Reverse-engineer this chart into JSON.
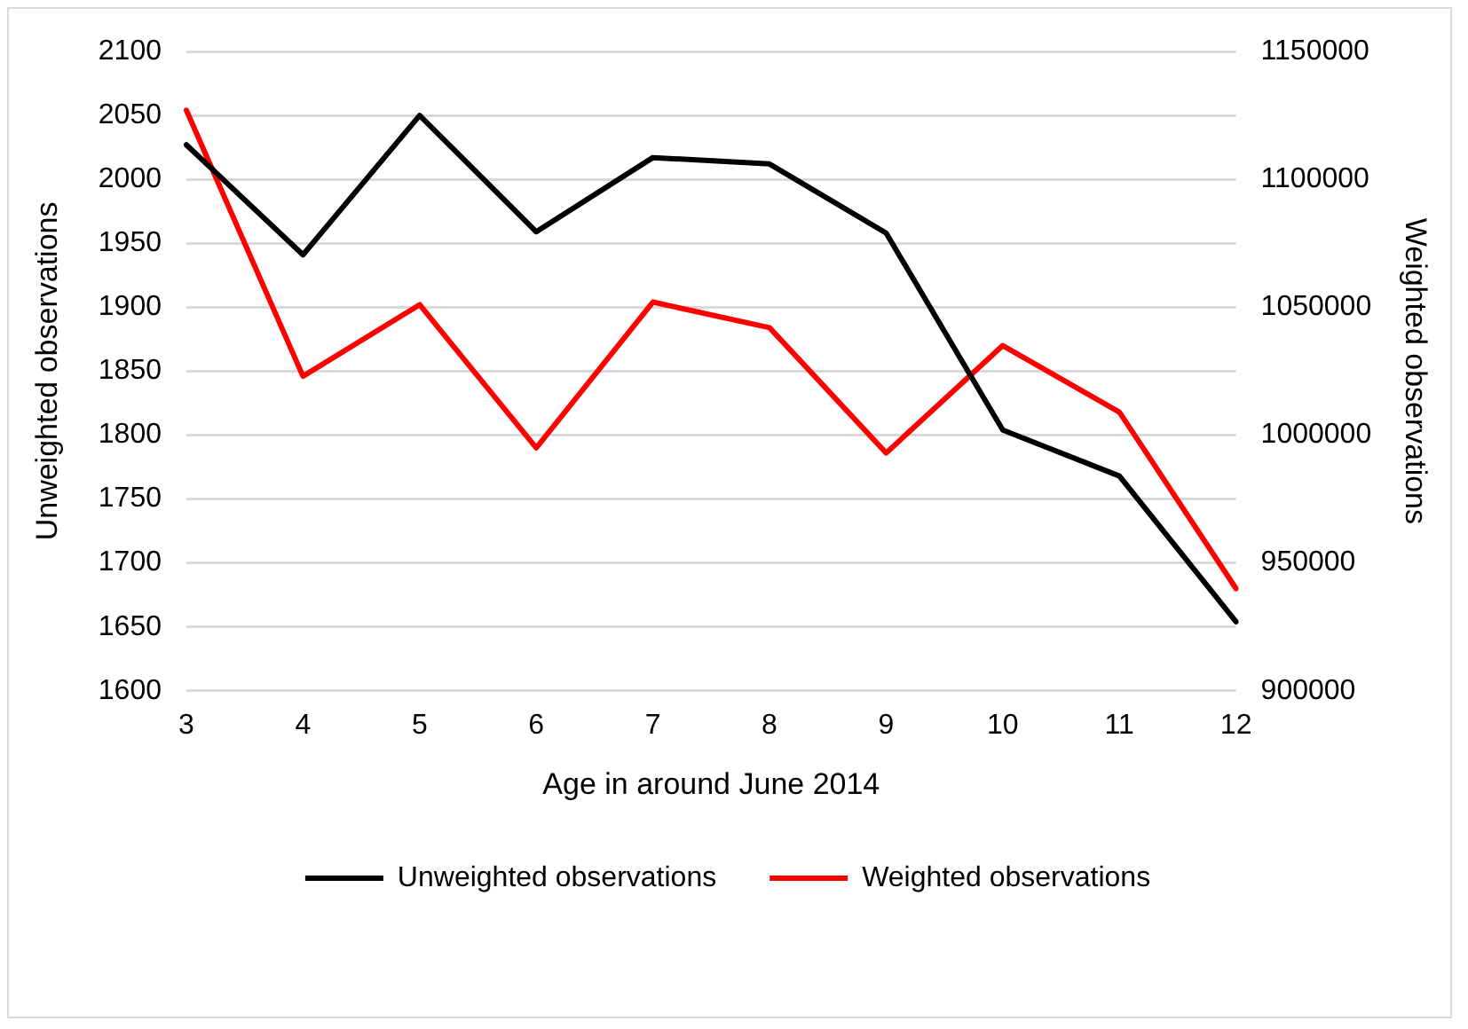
{
  "chart_data": {
    "type": "line",
    "xlabel": "Age in around June 2014",
    "ylabel": "Unweighted observations",
    "y2label": "Weighted observations",
    "categories": [
      "3",
      "4",
      "5",
      "6",
      "7",
      "8",
      "9",
      "10",
      "11",
      "12"
    ],
    "series": [
      {
        "name": "Unweighted observations",
        "color": "#000000",
        "values": [
          2027,
          1941,
          2050,
          1959,
          2017,
          2012,
          1958,
          1804,
          1768,
          1654
        ]
      },
      {
        "name": "Weighted observations",
        "color": "#ff0000",
        "axis": "y2",
        "values": [
          1127000,
          1023000,
          1051000,
          995000,
          1052000,
          1042000,
          993000,
          1035000,
          1009000,
          940000
        ]
      }
    ],
    "ylim": [
      1600,
      2100
    ],
    "yticks": [
      1600,
      1650,
      1700,
      1750,
      1800,
      1850,
      1900,
      1950,
      2000,
      2050,
      2100
    ],
    "y2lim": [
      900000,
      1150000
    ],
    "y2ticks": [
      900000,
      950000,
      1000000,
      1050000,
      1100000,
      1150000
    ],
    "grid": "y",
    "legend": "bottom",
    "marker": "none",
    "line_style": "solid"
  }
}
